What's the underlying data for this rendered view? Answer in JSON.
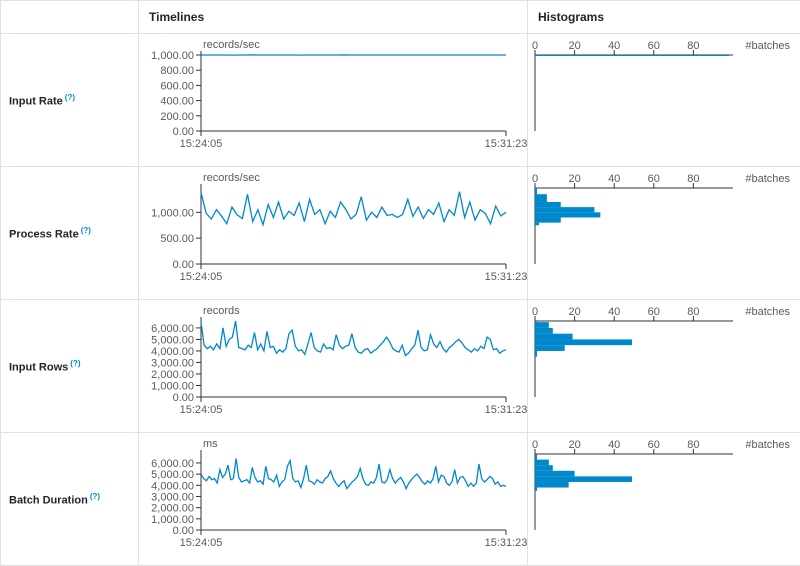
{
  "header": {
    "col_timelines": "Timelines",
    "col_histograms": "Histograms"
  },
  "help_mark": "(?)",
  "colors": {
    "line": "#0088cc",
    "bar": "#0088cc",
    "axis": "#333333"
  },
  "chart_data": [
    {
      "type": "line",
      "label": "Input Rate",
      "timeline": {
        "unit": "records/sec",
        "x_ticks": [
          "15:24:05",
          "15:31:23"
        ],
        "y_ticks": [
          0,
          200,
          400,
          600,
          800,
          1000
        ],
        "y_tick_labels": [
          "0.00",
          "200.00",
          "400.00",
          "600.00",
          "800.00",
          "1,000.00"
        ],
        "ylim": [
          0,
          1000
        ],
        "values": [
          1000,
          1000,
          1000,
          1000,
          1000,
          999,
          1000,
          1000,
          1001,
          1000,
          1000,
          1000,
          1000,
          1000,
          1000,
          1000,
          999,
          1000,
          1000,
          1000,
          1000,
          1000,
          1000,
          1001,
          1000,
          1000,
          1000,
          1000,
          1000,
          1000,
          1000,
          1000,
          1000,
          1000,
          1000,
          1000,
          1000,
          1000,
          1000,
          1000,
          1000,
          1000,
          1000,
          1000,
          1000,
          1000,
          1000,
          1000,
          1000,
          1000
        ]
      },
      "histogram": {
        "x_label": "#batches",
        "x_ticks": [
          0,
          20,
          40,
          60,
          80
        ],
        "xlim": [
          0,
          100
        ],
        "bins": [
          {
            "low": 990,
            "high": 1010,
            "count": 98
          }
        ]
      }
    },
    {
      "type": "line",
      "label": "Process Rate",
      "timeline": {
        "unit": "records/sec",
        "x_ticks": [
          "15:24:05",
          "15:31:23"
        ],
        "y_ticks": [
          0,
          500,
          1000
        ],
        "y_tick_labels": [
          "0.00",
          "500.00",
          "1,000.00"
        ],
        "ylim": [
          0,
          1470
        ],
        "values": [
          1380,
          980,
          870,
          1050,
          920,
          780,
          1100,
          950,
          880,
          1350,
          820,
          1050,
          760,
          1150,
          900,
          1200,
          870,
          1020,
          940,
          1180,
          820,
          1250,
          960,
          1050,
          780,
          1020,
          900,
          1200,
          1060,
          870,
          960,
          1300,
          850,
          1000,
          900,
          1100,
          940,
          960,
          900,
          960,
          1250,
          920,
          1100,
          880,
          1050,
          960,
          1180,
          820,
          1050,
          940,
          1400,
          900,
          1200,
          850,
          1050,
          980,
          780,
          1120,
          930,
          1000
        ]
      },
      "histogram": {
        "x_label": "#batches",
        "x_ticks": [
          0,
          20,
          40,
          60,
          80
        ],
        "xlim": [
          0,
          100
        ],
        "bins": [
          {
            "low": 1350,
            "high": 1500,
            "count": 1
          },
          {
            "low": 1200,
            "high": 1350,
            "count": 6
          },
          {
            "low": 1100,
            "high": 1200,
            "count": 13
          },
          {
            "low": 1000,
            "high": 1100,
            "count": 30
          },
          {
            "low": 900,
            "high": 1000,
            "count": 33
          },
          {
            "low": 800,
            "high": 900,
            "count": 13
          },
          {
            "low": 750,
            "high": 800,
            "count": 2
          }
        ]
      }
    },
    {
      "type": "line",
      "label": "Input Rows",
      "timeline": {
        "unit": "records",
        "x_ticks": [
          "15:24:05",
          "15:31:23"
        ],
        "y_ticks": [
          0,
          1000,
          2000,
          3000,
          4000,
          5000,
          6000
        ],
        "y_tick_labels": [
          "0.00",
          "1,000.00",
          "2,000.00",
          "3,000.00",
          "4,000.00",
          "5,000.00",
          "6,000.00"
        ],
        "ylim": [
          0,
          6600
        ],
        "values": [
          6500,
          4500,
          4200,
          4400,
          4100,
          4600,
          4200,
          6000,
          4400,
          5000,
          5200,
          6600,
          4300,
          4200,
          4100,
          4500,
          4300,
          5600,
          4100,
          4600,
          4000,
          5700,
          4300,
          4400,
          3800,
          4100,
          3900,
          4200,
          5500,
          5800,
          4400,
          4000,
          4100,
          3700,
          4600,
          5600,
          4300,
          4000,
          3900,
          4600,
          4200,
          4300,
          4100,
          5400,
          4500,
          4200,
          4400,
          4500,
          5500,
          4300,
          3900,
          3800,
          4100,
          4200,
          3800,
          4000,
          4200,
          4500,
          4800,
          5200,
          4800,
          4200,
          4000,
          3900,
          4500,
          3600,
          3800,
          4200,
          4500,
          5800,
          4300,
          4000,
          4100,
          5400,
          4600,
          4300,
          4800,
          4200,
          3900,
          4300,
          4500,
          4800,
          5000,
          4700,
          4300,
          4100,
          3900,
          4200,
          4000,
          4400,
          4200,
          5200,
          5000,
          4100,
          4200,
          3800,
          4000,
          4100
        ]
      },
      "histogram": {
        "x_label": "#batches",
        "x_ticks": [
          0,
          20,
          40,
          60,
          80
        ],
        "xlim": [
          0,
          100
        ],
        "bins": [
          {
            "low": 6500,
            "high": 6900,
            "count": 1
          },
          {
            "low": 6000,
            "high": 6500,
            "count": 7
          },
          {
            "low": 5500,
            "high": 6000,
            "count": 9
          },
          {
            "low": 5000,
            "high": 5500,
            "count": 19
          },
          {
            "low": 4500,
            "high": 5000,
            "count": 49
          },
          {
            "low": 4000,
            "high": 4500,
            "count": 15
          },
          {
            "low": 3500,
            "high": 4000,
            "count": 1
          }
        ]
      }
    },
    {
      "type": "line",
      "label": "Batch Duration",
      "timeline": {
        "unit": "ms",
        "x_ticks": [
          "15:24:05",
          "15:31:23"
        ],
        "y_ticks": [
          0,
          1000,
          2000,
          3000,
          4000,
          5000,
          6000
        ],
        "y_tick_labels": [
          "0.00",
          "1,000.00",
          "2,000.00",
          "3,000.00",
          "4,000.00",
          "5,000.00",
          "6,000.00"
        ],
        "ylim": [
          0,
          6800
        ],
        "values": [
          5000,
          4600,
          4400,
          4800,
          4500,
          4600,
          4200,
          5400,
          4700,
          5000,
          5800,
          4500,
          4600,
          6400,
          4700,
          4300,
          4400,
          4500,
          4200,
          5600,
          4700,
          4300,
          4400,
          4100,
          5700,
          4600,
          4500,
          4300,
          4900,
          3900,
          4300,
          4500,
          5700,
          6200,
          4600,
          4300,
          4400,
          3800,
          4600,
          5800,
          4400,
          4300,
          4100,
          4500,
          4300,
          4200,
          4600,
          4800,
          5300,
          4600,
          4200,
          3900,
          4200,
          4400,
          3700,
          4000,
          4300,
          4500,
          4800,
          5500,
          4600,
          4100,
          4000,
          4300,
          4200,
          4700,
          5900,
          4300,
          4200,
          4500,
          5400,
          4600,
          4200,
          4500,
          4700,
          4300,
          3700,
          4200,
          4500,
          4800,
          5000,
          4700,
          4300,
          4100,
          4400,
          4200,
          4600,
          5700,
          4300,
          4900,
          4800,
          4200,
          4000,
          4300,
          5400,
          4200,
          4700,
          4800,
          4400,
          3900,
          4200,
          3900,
          4200,
          5900,
          4600,
          4300,
          4500,
          4800,
          4600,
          4100,
          4300,
          3900,
          4000,
          3900
        ]
      },
      "histogram": {
        "x_label": "#batches",
        "x_ticks": [
          0,
          20,
          40,
          60,
          80
        ],
        "xlim": [
          0,
          100
        ],
        "bins": [
          {
            "low": 6300,
            "high": 6800,
            "count": 1
          },
          {
            "low": 5800,
            "high": 6300,
            "count": 7
          },
          {
            "low": 5300,
            "high": 5800,
            "count": 9
          },
          {
            "low": 4800,
            "high": 5300,
            "count": 20
          },
          {
            "low": 4300,
            "high": 4800,
            "count": 49
          },
          {
            "low": 3800,
            "high": 4300,
            "count": 17
          },
          {
            "low": 3500,
            "high": 3800,
            "count": 1
          }
        ]
      }
    }
  ]
}
